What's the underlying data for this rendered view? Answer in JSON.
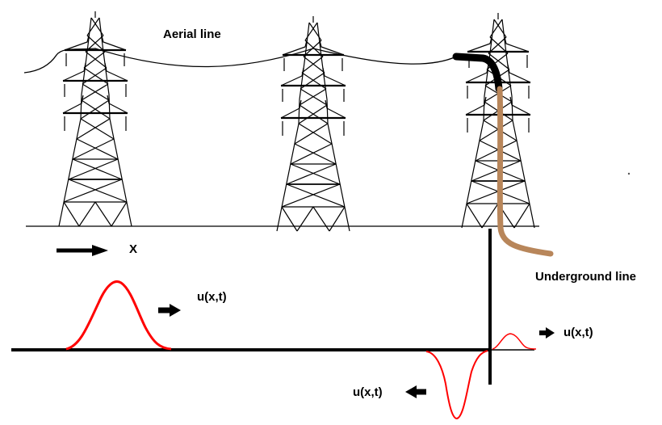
{
  "labels": {
    "aerial": "Aerial line",
    "axis_x": "X",
    "underground": "Underground line",
    "incident_wave": "u(x,t)",
    "transmitted_wave": "u(x,t)",
    "reflected_wave": "u(x,t)"
  },
  "colors": {
    "ink": "#000000",
    "wave": "#ff0000",
    "cable": "#b8865a",
    "background": "#ffffff"
  }
}
